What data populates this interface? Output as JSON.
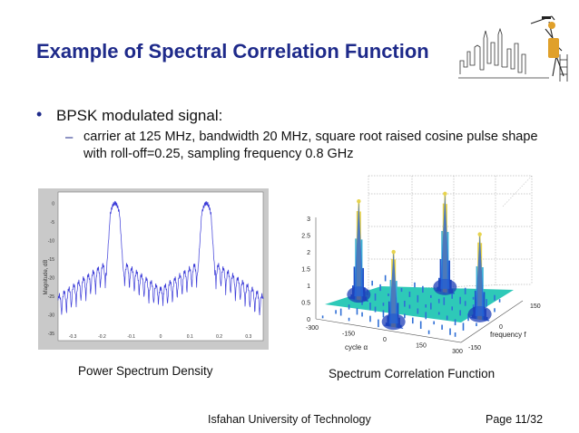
{
  "slide": {
    "title": "Example of Spectral Correlation Function",
    "bullet": "BPSK modulated signal:",
    "sub_bullet": "carrier at 125 MHz, bandwidth 20 MHz, square root raised cosine pulse shape with roll-off=0.25, sampling frequency 0.8 GHz",
    "caption_left": "Power Spectrum Density",
    "caption_right": "Spectrum Correlation Function",
    "footer_institution": "Isfahan University of Technology",
    "footer_page": "Page 11/32"
  },
  "colors": {
    "title": "#1e2a8a",
    "psd_line": "#3a3ad8",
    "scf_base": "#2ec9b8"
  },
  "chart_data": [
    {
      "type": "line",
      "ylabel": "Magnitude, dB",
      "x_ticks": [
        "-0.3",
        "-0.2",
        "-0.1",
        "0",
        "0.1",
        "0.2",
        "0.3"
      ],
      "y_ticks": [
        "0",
        "-5",
        "-10",
        "-15",
        "-20",
        "-25",
        "-30",
        "-35"
      ],
      "xlim": [
        -0.35,
        0.35
      ],
      "ylim": [
        -37,
        3
      ],
      "main_lobes": [
        -0.156,
        0.156
      ],
      "grid": false
    },
    {
      "type": "surface",
      "x_label": "cycle α",
      "y_label": "frequency f",
      "z_ticks": [
        "0",
        "0.5",
        "1",
        "1.5",
        "2",
        "2.5",
        "3"
      ],
      "x_ticks": [
        "-300",
        "-150",
        "0",
        "150",
        "300"
      ],
      "y_ticks": [
        "-150",
        "0",
        "150"
      ],
      "peaks": [
        {
          "alpha": -250,
          "f": 0,
          "height": 3
        },
        {
          "alpha": 0,
          "f": -125,
          "height": 2.3
        },
        {
          "alpha": 0,
          "f": 125,
          "height": 3
        },
        {
          "alpha": 250,
          "f": 0,
          "height": 2.6
        }
      ]
    }
  ]
}
